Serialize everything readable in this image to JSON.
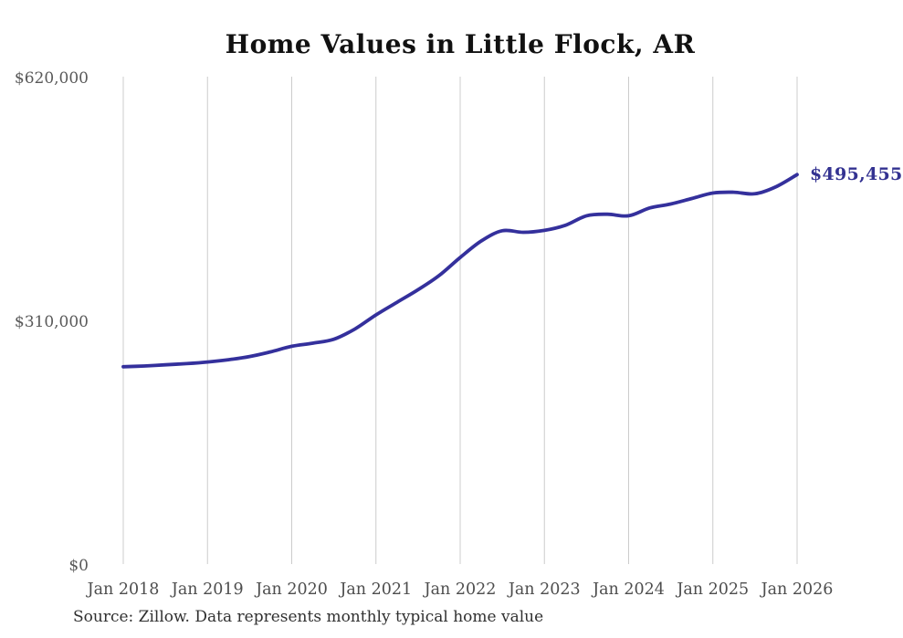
{
  "chart_data": {
    "type": "line",
    "title": "Home Values in Little Flock, AR",
    "series_name": "Monthly typical home value",
    "x": [
      "Jan 2018",
      "Apr 2018",
      "Jul 2018",
      "Oct 2018",
      "Jan 2019",
      "Apr 2019",
      "Jul 2019",
      "Oct 2019",
      "Jan 2020",
      "Apr 2020",
      "Jul 2020",
      "Oct 2020",
      "Jan 2021",
      "Apr 2021",
      "Jul 2021",
      "Oct 2021",
      "Jan 2022",
      "Apr 2022",
      "Jul 2022",
      "Oct 2022",
      "Jan 2023",
      "Apr 2023",
      "Jul 2023",
      "Oct 2023",
      "Jan 2024",
      "Apr 2024",
      "Jul 2024",
      "Oct 2024",
      "Jan 2025",
      "Apr 2025",
      "Jul 2025",
      "Oct 2025",
      "Jan 2026"
    ],
    "values": [
      251000,
      252000,
      253500,
      255000,
      257000,
      260000,
      264000,
      270000,
      277000,
      281000,
      286000,
      299000,
      317000,
      333000,
      349000,
      367000,
      390000,
      411000,
      424000,
      422000,
      424500,
      431000,
      443000,
      445000,
      443000,
      453000,
      458000,
      465000,
      472000,
      473000,
      471000,
      480000,
      495455
    ],
    "x_tick_labels": [
      "Jan 2018",
      "Jan 2019",
      "Jan 2020",
      "Jan 2021",
      "Jan 2022",
      "Jan 2023",
      "Jan 2024",
      "Jan 2025",
      "Jan 2026"
    ],
    "y_ticks": [
      {
        "label": "$0",
        "value": 0
      },
      {
        "label": "$310,000",
        "value": 310000
      },
      {
        "label": "$620,000",
        "value": 620000
      }
    ],
    "ylim": [
      0,
      620000
    ],
    "grid": "vertical-only",
    "legend": "none",
    "end_label": "$495,455",
    "end_value": 495455,
    "line_color": "#34309c",
    "end_label_color": "#333291",
    "grid_color": "#cccccc"
  },
  "footer": {
    "source": "Source: Zillow. Data represents monthly typical home value"
  }
}
